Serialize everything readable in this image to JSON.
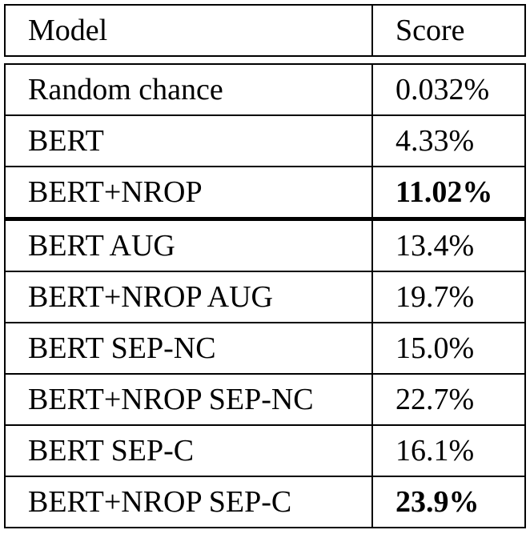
{
  "table": {
    "headers": [
      "Model",
      "Score"
    ],
    "rows": [
      {
        "model": "Random chance",
        "score": "0.032%",
        "bold": false
      },
      {
        "model": "BERT",
        "score": "4.33%",
        "bold": false
      },
      {
        "model": "BERT+NROP",
        "score": "11.02%",
        "bold": true
      },
      {
        "model": "BERT AUG",
        "score": "13.4%",
        "bold": false
      },
      {
        "model": "BERT+NROP AUG",
        "score": "19.7%",
        "bold": false
      },
      {
        "model": "BERT SEP-NC",
        "score": "15.0%",
        "bold": false
      },
      {
        "model": "BERT+NROP SEP-NC",
        "score": "22.7%",
        "bold": false
      },
      {
        "model": "BERT SEP-C",
        "score": "16.1%",
        "bold": false
      },
      {
        "model": "BERT+NROP SEP-C",
        "score": "23.9%",
        "bold": true
      }
    ]
  }
}
